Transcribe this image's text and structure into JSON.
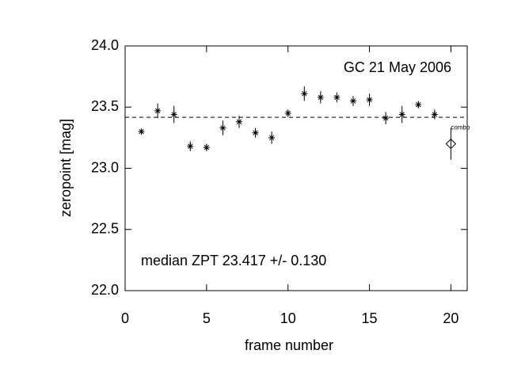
{
  "chart_data": {
    "type": "scatter",
    "xlabel": "frame number",
    "ylabel": "zeropoint [mag]",
    "xlim": [
      0,
      21
    ],
    "ylim": [
      22.0,
      24.0
    ],
    "xticks": [
      0,
      5,
      10,
      15,
      20
    ],
    "yticks": [
      {
        "value": 22.0,
        "label": "22.0"
      },
      {
        "value": 22.5,
        "label": "22.5"
      },
      {
        "value": 23.0,
        "label": "23.0"
      },
      {
        "value": 23.5,
        "label": "23.5"
      },
      {
        "value": 24.0,
        "label": "24.0"
      }
    ],
    "x": [
      1,
      2,
      3,
      4,
      5,
      6,
      7,
      8,
      9,
      10,
      11,
      12,
      13,
      14,
      15,
      16,
      17,
      18,
      19
    ],
    "values": [
      23.3,
      23.47,
      23.44,
      23.18,
      23.17,
      23.33,
      23.38,
      23.29,
      23.25,
      23.45,
      23.61,
      23.58,
      23.58,
      23.55,
      23.56,
      23.41,
      23.44,
      23.52,
      23.44
    ],
    "errors": [
      0.02,
      0.06,
      0.07,
      0.04,
      0.03,
      0.06,
      0.05,
      0.04,
      0.05,
      0.03,
      0.06,
      0.05,
      0.04,
      0.04,
      0.05,
      0.05,
      0.07,
      0.03,
      0.04
    ],
    "combo": {
      "label": "combo",
      "x": 20,
      "value": 23.2,
      "error": 0.13
    },
    "median": 23.417,
    "annotations": [
      "GC 21 May 2006",
      "median ZPT 23.417 +/- 0.130"
    ]
  }
}
